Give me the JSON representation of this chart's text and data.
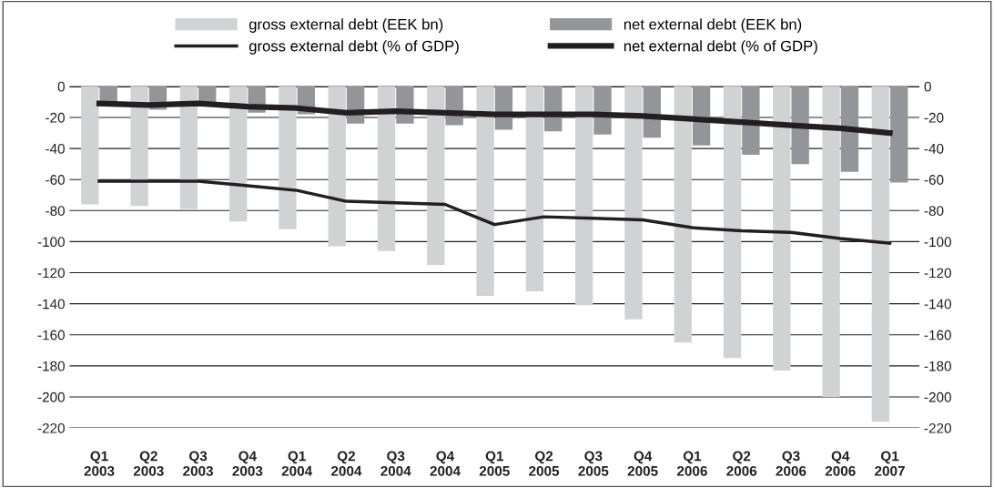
{
  "chart_data": {
    "type": "bar",
    "categories": [
      "Q1\n2003",
      "Q2\n2003",
      "Q3\n2003",
      "Q4\n2003",
      "Q1\n2004",
      "Q2\n2004",
      "Q3\n2004",
      "Q4\n2004",
      "Q1\n2005",
      "Q2\n2005",
      "Q3\n2005",
      "Q4\n2005",
      "Q1\n2006",
      "Q2\n2006",
      "Q3\n2006",
      "Q4\n2006",
      "Q1\n2007"
    ],
    "series": [
      {
        "name": "gross external debt (EEK bn)",
        "color": "#d1d2d4",
        "values": [
          -76,
          -77,
          -79,
          -87,
          -92,
          -103,
          -106,
          -115,
          -135,
          -132,
          -141,
          -150,
          -165,
          -175,
          -183,
          -200,
          -216
        ]
      },
      {
        "name": "net external debt (EEK bn)",
        "color": "#939598",
        "values": [
          -11,
          -15,
          -11,
          -17,
          -18,
          -24,
          -24,
          -25,
          -28,
          -29,
          -31,
          -33,
          -38,
          -44,
          -50,
          -55,
          -62
        ]
      },
      {
        "name": "gross external debt (% of GDP)",
        "type": "line",
        "color": "#231f20",
        "values": [
          -61,
          -61,
          -61,
          -64,
          -67,
          -74,
          -75,
          -76,
          -89,
          -84,
          -85,
          -86,
          -91,
          -93,
          -94,
          -98,
          -101
        ]
      },
      {
        "name": "net external debt (% of GDP)",
        "type": "line",
        "color": "#231f20",
        "values": [
          -11,
          -12,
          -11,
          -13,
          -14,
          -17,
          -16,
          -17,
          -18,
          -18,
          -18,
          -19,
          -21,
          -23,
          -25,
          -27,
          -30
        ]
      }
    ],
    "ylim": [
      -220,
      0
    ],
    "yticks": [
      0,
      -20,
      -40,
      -60,
      -80,
      -100,
      -120,
      -140,
      -160,
      -180,
      -200,
      -220
    ],
    "y2lim": [
      -220,
      0
    ],
    "y2ticks": [
      0,
      -20,
      -40,
      -60,
      -80,
      -100,
      -120,
      -140,
      -160,
      -180,
      -200,
      -220
    ],
    "grid": "y",
    "legend": "top",
    "marker": "none",
    "line_style": "solid"
  }
}
